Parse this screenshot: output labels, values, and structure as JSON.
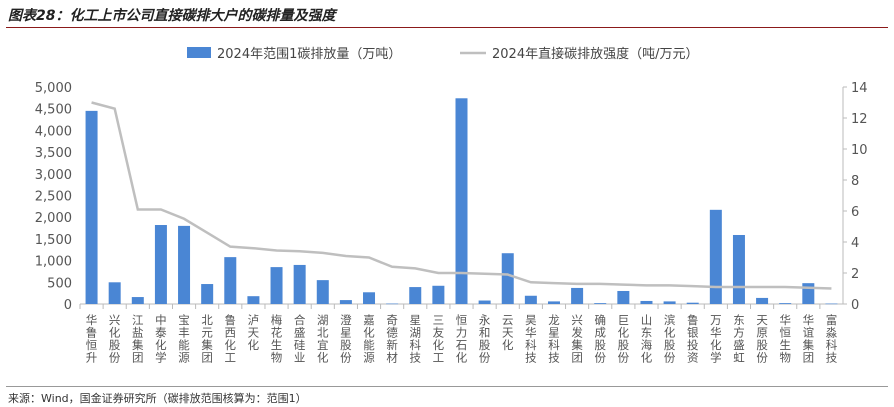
{
  "title": "图表28：化工上市公司直接碳排大户的碳排量及强度",
  "source": "来源：Wind，国金证券研究所（碳排放范围核算为：范围1）",
  "chart_data": {
    "type": "bar+line",
    "categories": [
      "华鲁恒升",
      "兴化股份",
      "江盐集团",
      "中泰化学",
      "宝丰能源",
      "北元集团",
      "鲁西化工",
      "泸天化",
      "梅花生物",
      "合盛硅业",
      "湖北宜化",
      "澄星股份",
      "嘉化能源",
      "奇德新材",
      "星湖科技",
      "三友化工",
      "恒力石化",
      "永和股份",
      "云天化",
      "昊华科技",
      "龙星科技",
      "兴发集团",
      "确成股份",
      "巨化股份",
      "山东海化",
      "滨化股份",
      "鲁银投资",
      "万华化学",
      "东方盛虹",
      "天原股份",
      "华恒生物",
      "华谊集团",
      "富淼科技"
    ],
    "series": [
      {
        "name": "2024年范围1碳排放量（万吨）",
        "type": "bar",
        "axis": "left",
        "color": "#4a86d4",
        "values": [
          4450,
          500,
          160,
          1820,
          1800,
          460,
          1080,
          180,
          850,
          900,
          550,
          90,
          270,
          10,
          390,
          420,
          4740,
          80,
          1170,
          190,
          60,
          370,
          20,
          300,
          70,
          60,
          30,
          2170,
          1590,
          140,
          20,
          480,
          10
        ]
      },
      {
        "name": "2024年直接碳排放强度（吨/万元）",
        "type": "line",
        "axis": "right",
        "color": "#bfbfbf",
        "values": [
          13.0,
          12.6,
          6.1,
          6.1,
          5.5,
          4.6,
          3.7,
          3.6,
          3.45,
          3.4,
          3.3,
          3.1,
          3.0,
          2.4,
          2.3,
          2.0,
          2.0,
          1.95,
          1.9,
          1.4,
          1.35,
          1.3,
          1.3,
          1.25,
          1.2,
          1.2,
          1.15,
          1.1,
          1.1,
          1.1,
          1.1,
          1.05,
          1.0
        ]
      }
    ],
    "ylim_left": [
      0,
      5000
    ],
    "yticks_left": [
      "0",
      "500",
      "1,000",
      "1,500",
      "2,000",
      "2,500",
      "3,000",
      "3,500",
      "4,000",
      "4,500",
      "5,000"
    ],
    "ylim_right": [
      0,
      14
    ],
    "yticks_right": [
      "0",
      "2",
      "4",
      "6",
      "8",
      "10",
      "12",
      "14"
    ],
    "legend": "top"
  }
}
